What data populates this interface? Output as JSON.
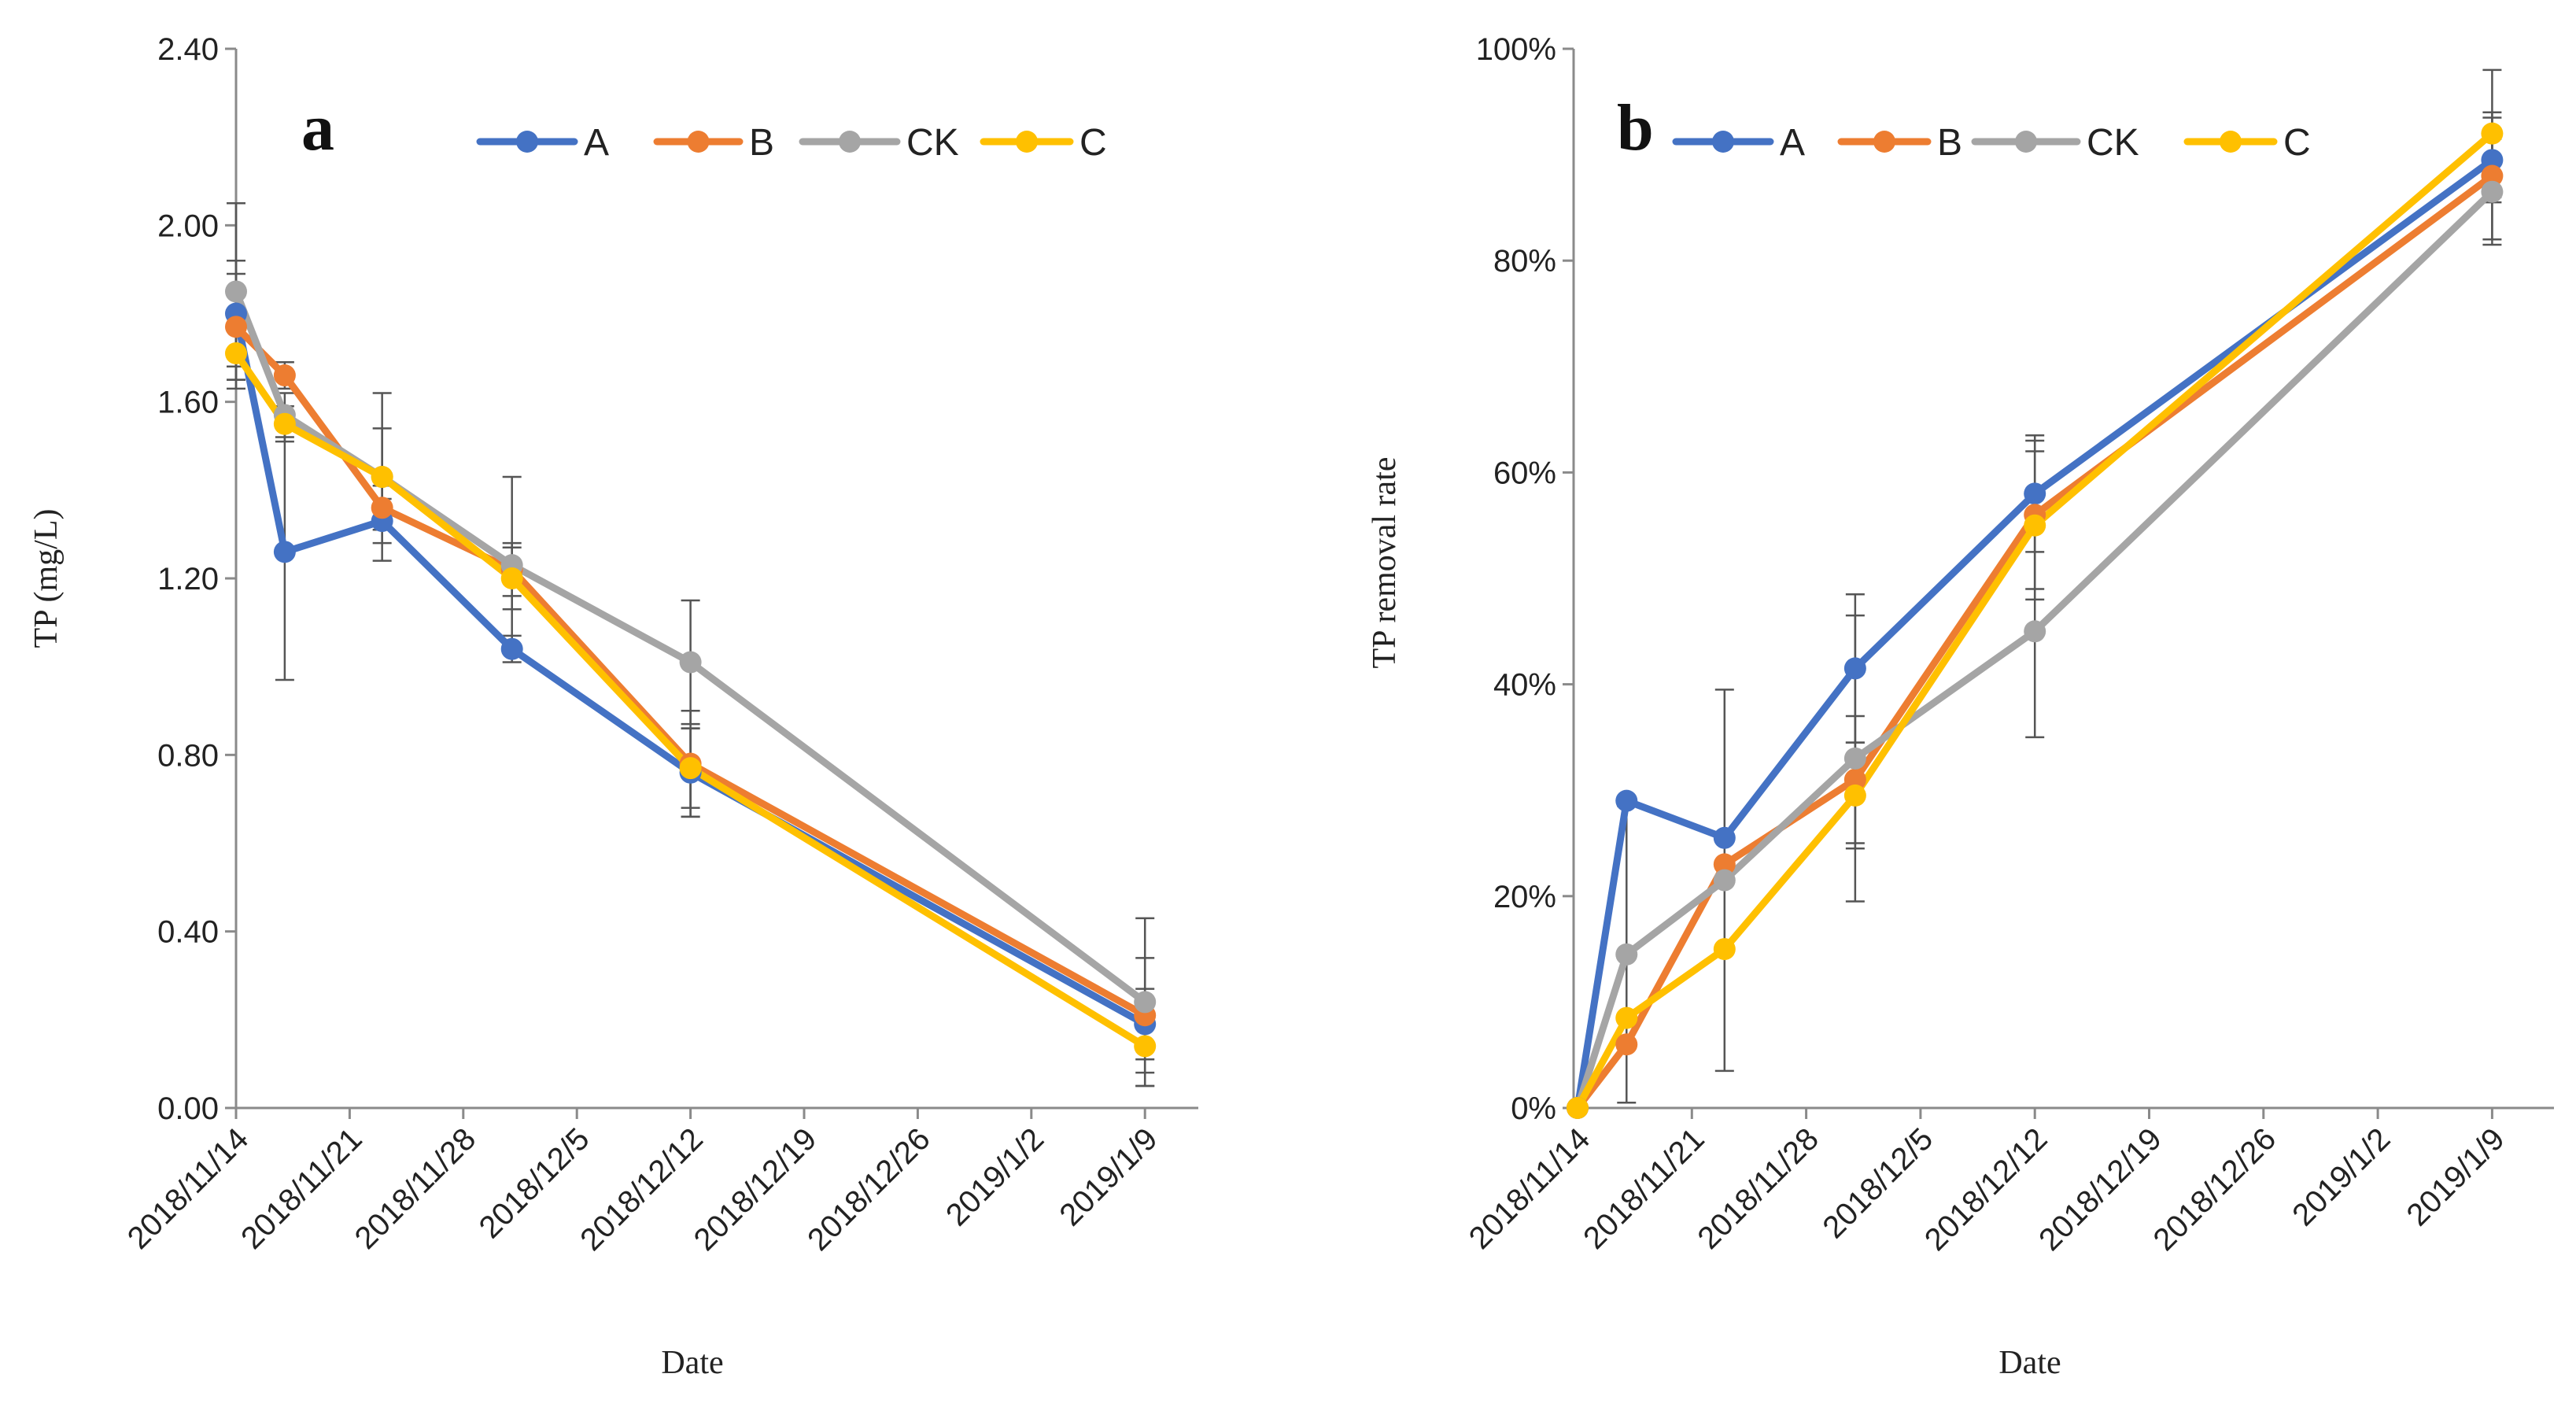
{
  "colors": {
    "A": "#4472C4",
    "B": "#ED7D31",
    "CK": "#A5A5A5",
    "C": "#FFC000"
  },
  "chart_data": [
    {
      "type": "line",
      "title": "a",
      "xlabel": "Date",
      "ylabel": "TP (mg/L)",
      "x_ticks": [
        "2018/11/14",
        "2018/11/21",
        "2018/11/28",
        "2018/12/5",
        "2018/12/12",
        "2018/12/19",
        "2018/12/26",
        "2019/1/2",
        "2019/1/9"
      ],
      "y_ticks": [
        "0.00",
        "0.40",
        "0.80",
        "1.20",
        "1.60",
        "2.00",
        "2.40"
      ],
      "ylim": [
        0,
        2.4
      ],
      "x_days": [
        0,
        3,
        9,
        17,
        28,
        56
      ],
      "series": [
        {
          "name": "A",
          "values": [
            1.8,
            1.26,
            1.33,
            1.04,
            0.76,
            0.19
          ],
          "err": [
            0.12,
            0.29,
            0.05,
            0.03,
            0.1,
            0.08
          ]
        },
        {
          "name": "B",
          "values": [
            1.77,
            1.66,
            1.36,
            1.22,
            0.78,
            0.21
          ],
          "err": [
            0.12,
            0.03,
            0.05,
            0.06,
            0.12,
            0.13
          ]
        },
        {
          "name": "CK",
          "values": [
            1.85,
            1.57,
            1.43,
            1.23,
            1.01,
            0.24
          ],
          "err": [
            0.2,
            0.05,
            0.19,
            0.2,
            0.14,
            0.19
          ]
        },
        {
          "name": "C",
          "values": [
            1.71,
            1.55,
            1.43,
            1.2,
            0.77,
            0.14
          ],
          "err": [
            0.08,
            0.04,
            0.11,
            0.07,
            0.09,
            0.09
          ]
        }
      ]
    },
    {
      "type": "line",
      "title": "b",
      "xlabel": "Date",
      "ylabel": "TP removal rate",
      "x_ticks": [
        "2018/11/14",
        "2018/11/21",
        "2018/11/28",
        "2018/12/5",
        "2018/12/12",
        "2018/12/19",
        "2018/12/26",
        "2019/1/2",
        "2019/1/9"
      ],
      "y_ticks": [
        "0%",
        "20%",
        "40%",
        "60%",
        "80%",
        "100%"
      ],
      "ylim": [
        0,
        100
      ],
      "x_days": [
        0,
        3,
        9,
        17,
        28,
        56
      ],
      "series": [
        {
          "name": "A",
          "values": [
            0,
            29,
            25.5,
            41.5,
            58,
            89.5
          ],
          "err": [
            0,
            0,
            0,
            7,
            5.5,
            4
          ]
        },
        {
          "name": "B",
          "values": [
            0,
            6,
            23,
            31,
            56,
            88
          ],
          "err": [
            0,
            0,
            0,
            6,
            7,
            6
          ]
        },
        {
          "name": "CK",
          "values": [
            0,
            14.5,
            21.5,
            33,
            45,
            86.5
          ],
          "err": [
            0,
            14,
            18,
            13.5,
            10,
            5
          ]
        },
        {
          "name": "C",
          "values": [
            0,
            8.5,
            15,
            29.5,
            55,
            92
          ],
          "err": [
            0,
            0,
            0,
            5,
            7,
            6
          ]
        }
      ]
    }
  ]
}
